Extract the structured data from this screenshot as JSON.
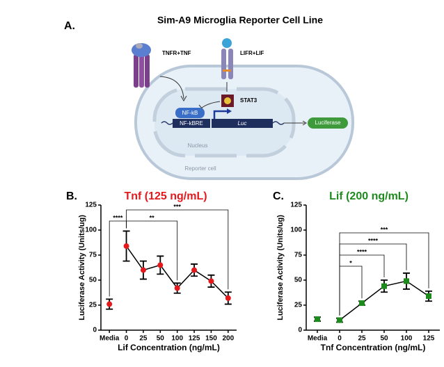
{
  "diagram": {
    "panel": "A.",
    "title": "Sim-A9 Microglia Reporter Cell Line",
    "labels": {
      "tnfr": "TNFR+TNF",
      "lifr": "LIFR+LIF",
      "stat3": "STAT3",
      "nfkb": "NF-kB",
      "nfkbre": "NF-kBRE",
      "luc": "Luc",
      "luciferase": "Luciferase",
      "nucleus": "Nucleus",
      "cell": "Reporter cell"
    }
  },
  "chart_data": [
    {
      "type": "line",
      "panel": "B.",
      "title": "Tnf (125 ng/mL)",
      "title_color": "#e3191c",
      "x_label": "Lif Concentration (ng/mL)",
      "y_label": "Luciferase Activity (Units/ug)",
      "categories": [
        "Media",
        "0",
        "25",
        "50",
        "100",
        "125",
        "150",
        "200"
      ],
      "series": [
        {
          "color": "#e3191c",
          "marker": "circle",
          "values": [
            26,
            84,
            60,
            65,
            42,
            60,
            49,
            32
          ],
          "errors": [
            5,
            15,
            9,
            9,
            5,
            6,
            6,
            6
          ]
        }
      ],
      "ylim": [
        0,
        125
      ],
      "yticks": [
        0,
        25,
        50,
        75,
        100,
        125
      ],
      "significance": [
        {
          "from": 0,
          "to": 1,
          "label": "****"
        },
        {
          "from": 1,
          "to": 4,
          "label": "**"
        },
        {
          "from": 1,
          "to": 7,
          "label": "***"
        }
      ]
    },
    {
      "type": "line",
      "panel": "C.",
      "title": "Lif (200 ng/mL)",
      "title_color": "#1e8a1e",
      "x_label": "Tnf Concentration (ng/mL)",
      "y_label": "Luciferase Activity (Units/ug)",
      "categories": [
        "Media",
        "0",
        "25",
        "50",
        "100",
        "125"
      ],
      "series": [
        {
          "color": "#1e8a1e",
          "marker": "square",
          "values": [
            11,
            10,
            27,
            44,
            49,
            34
          ],
          "errors": [
            2,
            2,
            2,
            6,
            8,
            5
          ]
        }
      ],
      "ylim": [
        0,
        125
      ],
      "yticks": [
        0,
        25,
        50,
        75,
        100,
        125
      ],
      "significance": [
        {
          "from": 1,
          "to": 2,
          "label": "*"
        },
        {
          "from": 1,
          "to": 3,
          "label": "****"
        },
        {
          "from": 1,
          "to": 4,
          "label": "****"
        },
        {
          "from": 1,
          "to": 5,
          "label": "***"
        }
      ]
    }
  ]
}
